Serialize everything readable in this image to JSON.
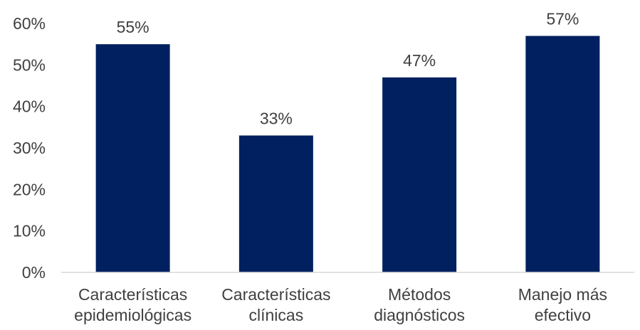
{
  "chart_data": {
    "type": "bar",
    "categories": [
      [
        "Características",
        "epidemiológicas"
      ],
      [
        "Características",
        "clínicas"
      ],
      [
        "Métodos",
        "diagnósticos"
      ],
      [
        "Manejo más",
        "efectivo"
      ]
    ],
    "values": [
      55,
      33,
      47,
      57
    ],
    "data_labels": [
      "55%",
      "33%",
      "47%",
      "57%"
    ],
    "y_ticks": [
      0,
      10,
      20,
      30,
      40,
      50,
      60
    ],
    "y_tick_labels": [
      "0%",
      "10%",
      "20%",
      "30%",
      "40%",
      "50%",
      "60%"
    ],
    "ylim": [
      0,
      60
    ],
    "title": "",
    "xlabel": "",
    "ylabel": "",
    "grid": false,
    "legend": "none",
    "bar_color": "#002060",
    "axis_color": "#d9d9d9",
    "text_color": "#404040"
  }
}
